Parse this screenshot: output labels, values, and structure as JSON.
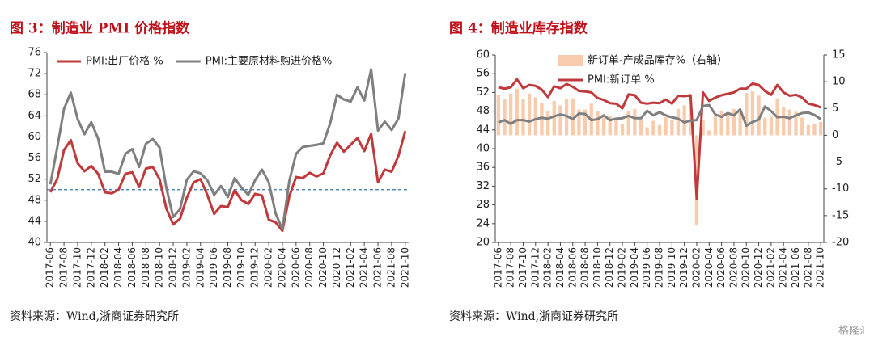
{
  "chart_data": [
    {
      "type": "line",
      "title": "图 3：制造业 PMI 价格指数",
      "source": "资料来源：Wind,浙商证券研究所",
      "categories": [
        "2017-06",
        null,
        "2017-08",
        null,
        "2017-10",
        null,
        "2017-12",
        null,
        "2018-02",
        null,
        "2018-04",
        null,
        "2018-06",
        null,
        "2018-08",
        null,
        "2018-10",
        null,
        "2018-12",
        null,
        "2019-02",
        null,
        "2019-04",
        null,
        "2019-06",
        null,
        "2019-08",
        null,
        "2019-10",
        null,
        "2019-12",
        null,
        "2020-02",
        null,
        "2020-04",
        null,
        "2020-06",
        null,
        "2020-08",
        null,
        "2020-10",
        null,
        "2020-12",
        null,
        "2021-02",
        null,
        "2021-04",
        null,
        "2021-06",
        null,
        "2021-08",
        null,
        "2021-10"
      ],
      "series": [
        {
          "name": "PMI:出厂价格 %",
          "color": "#c0393b",
          "values": [
            49.5,
            52,
            57.5,
            59.4,
            55,
            53.5,
            54.5,
            53,
            49.5,
            49.3,
            50,
            53,
            53.3,
            50.5,
            54,
            54.3,
            52,
            46.4,
            43.4,
            44.5,
            48.5,
            51.4,
            52,
            49,
            45.4,
            46.9,
            46.7,
            49.9,
            48,
            47.3,
            49.2,
            48.9,
            44.3,
            43.8,
            42.2,
            48.7,
            52.4,
            52.2,
            53.2,
            52.5,
            53.1,
            56.5,
            58.9,
            57.2,
            58.5,
            59.8,
            57.3,
            60.6,
            51.4,
            53.8,
            53.4,
            56.4,
            61.1
          ]
        },
        {
          "name": "PMI:主要原材料购进价格%",
          "color": "#7f7f7f",
          "values": [
            51,
            57.9,
            65.3,
            68.4,
            63.4,
            60.5,
            62.8,
            59.7,
            53.4,
            53.4,
            53,
            56.8,
            57.7,
            54.3,
            58.7,
            59.6,
            58,
            50.3,
            44.8,
            46.3,
            51.9,
            53.5,
            53.1,
            51.8,
            49,
            50.7,
            48.6,
            52.2,
            50.4,
            49,
            51.8,
            53.8,
            51.4,
            45.5,
            42.5,
            51.6,
            56.8,
            58.1,
            58.3,
            58.5,
            58.8,
            62.6,
            68,
            67.1,
            66.7,
            69.4,
            66.9,
            72.8,
            61.2,
            62.9,
            61.3,
            63.5,
            72.1
          ]
        }
      ],
      "hline": {
        "value": 50,
        "color": "#2e75b6"
      },
      "ylim": [
        40,
        76
      ],
      "yticks": [
        40,
        44,
        48,
        52,
        56,
        60,
        64,
        68,
        72,
        76
      ],
      "legend": "upper left"
    },
    {
      "type": "combo",
      "title": "图 4：制造业库存指数",
      "source": "资料来源：Wind,浙商证券研究所",
      "categories": [
        "2017-06",
        null,
        "2017-08",
        null,
        "2017-10",
        null,
        "2017-12",
        null,
        "2018-02",
        null,
        "2018-04",
        null,
        "2018-06",
        null,
        "2018-08",
        null,
        "2018-10",
        null,
        "2018-12",
        null,
        "2019-02",
        null,
        "2019-04",
        null,
        "2019-06",
        null,
        "2019-08",
        null,
        "2019-10",
        null,
        "2019-12",
        null,
        "2020-02",
        null,
        "2020-04",
        null,
        "2020-06",
        null,
        "2020-08",
        null,
        "2020-10",
        null,
        "2020-12",
        null,
        "2021-02",
        null,
        "2021-04",
        null,
        "2021-06",
        null,
        "2021-08",
        null,
        "2021-10"
      ],
      "series": [
        {
          "name": "新订单-产成品库存%（右轴）",
          "type": "bar",
          "axis": "y2",
          "color": "#f8cbad",
          "values": [
            7.5,
            6.7,
            7.8,
            8.7,
            6.8,
            7.8,
            7.1,
            6.0,
            4.6,
            6.4,
            5.6,
            6.8,
            6.9,
            4.8,
            4.8,
            5.9,
            4.5,
            3.3,
            3.6,
            3.2,
            2.1,
            4.6,
            4.9,
            3.3,
            1.5,
            2.7,
            1.9,
            3.4,
            2.9,
            4.9,
            5.6,
            5.4,
            -16.8,
            2.9,
            0.9,
            3.6,
            4.6,
            4.1,
            4.9,
            4.4,
            7.9,
            8.2,
            7.4,
            3.3,
            3.5,
            6.9,
            5.2,
            4.8,
            4.4,
            3.3,
            1.9,
            2.1,
            2.5
          ]
        },
        {
          "name": "PMI:新订单 %",
          "type": "line",
          "color": "#c0393b",
          "values": [
            53.1,
            52.8,
            53.1,
            54.8,
            52.9,
            53.6,
            53.4,
            52.6,
            51.0,
            53.3,
            52.9,
            53.8,
            53.2,
            52.3,
            52.2,
            52.0,
            50.8,
            50.4,
            49.7,
            49.6,
            48.6,
            51.6,
            51.4,
            49.8,
            49.6,
            49.8,
            49.7,
            50.5,
            49.6,
            51.3,
            51.2,
            51.4,
            29.3,
            52.0,
            50.2,
            50.9,
            51.4,
            51.7,
            52.0,
            52.8,
            52.8,
            53.9,
            53.6,
            52.3,
            51.5,
            53.6,
            52.0,
            51.3,
            51.5,
            50.9,
            49.6,
            49.3,
            48.8
          ]
        },
        {
          "type": "line",
          "color": "#7f7f7f",
          "values": [
            45.6,
            46.1,
            45.3,
            46.1,
            46.1,
            45.8,
            46.3,
            46.6,
            46.4,
            46.9,
            47.3,
            47.0,
            46.3,
            47.5,
            47.4,
            46.1,
            46.3,
            47.1,
            46.1,
            46.4,
            46.5,
            47.0,
            46.5,
            46.5,
            48.1,
            47.1,
            47.8,
            47.1,
            46.7,
            46.4,
            45.6,
            46.0,
            46.1,
            49.1,
            49.3,
            47.3,
            46.8,
            47.6,
            47.1,
            48.4,
            44.9,
            45.7,
            46.2,
            49.0,
            48.0,
            46.7,
            46.8,
            46.5,
            47.1,
            47.6,
            47.7,
            47.2,
            46.3
          ]
        }
      ],
      "ylim": [
        20,
        60
      ],
      "yticks": [
        20,
        24,
        28,
        32,
        36,
        40,
        44,
        48,
        52,
        56,
        60
      ],
      "y2lim": [
        -20,
        15
      ],
      "y2ticks": [
        -20,
        -15,
        -10,
        -5,
        0,
        5,
        10,
        15
      ],
      "legend": "upper left"
    }
  ],
  "watermark": "格隆汇"
}
